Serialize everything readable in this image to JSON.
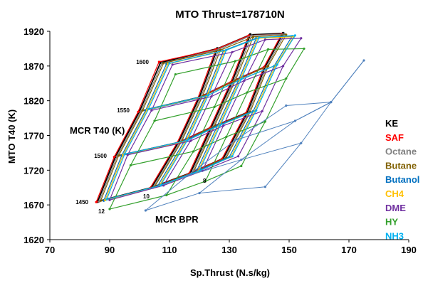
{
  "chart_data": {
    "type": "line",
    "title": "MTO Thrust=178710N",
    "xlabel": "Sp.Thrust (N.s/kg)",
    "ylabel": "MTO T40 (K)",
    "xlim": [
      70,
      190
    ],
    "ylim": [
      1620,
      1920
    ],
    "xticks": [
      70,
      90,
      110,
      130,
      150,
      170,
      190
    ],
    "yticks": [
      1620,
      1670,
      1720,
      1770,
      1820,
      1870,
      1920
    ],
    "grid": false,
    "legend_position": "right",
    "annotations": {
      "mcr_t40_label": "MCR T40 (K)",
      "mcr_bpr_label": "MCR BPR",
      "t40_levels": [
        "1600",
        "1550",
        "1500",
        "1450"
      ],
      "bpr_levels": [
        "12",
        "10",
        "8"
      ]
    },
    "series": [
      {
        "name": "KE",
        "color": "#000000",
        "x": [
          [
            86,
            92,
            100,
            107
          ],
          [
            104,
            113,
            120,
            126
          ],
          [
            117,
            124,
            131,
            137
          ],
          [
            128,
            136,
            142,
            148
          ]
        ],
        "y": [
          [
            1675,
            1740,
            1805,
            1875
          ],
          [
            1695,
            1760,
            1825,
            1895
          ],
          [
            1716,
            1782,
            1848,
            1915
          ],
          [
            1737,
            1803,
            1869,
            1917
          ]
        ]
      },
      {
        "name": "SAF",
        "color": "#ff0000",
        "x": [
          [
            85.5,
            91.5,
            99.5,
            106.5
          ],
          [
            103.5,
            112.5,
            119.5,
            125.5
          ],
          [
            116.5,
            123.5,
            130.5,
            136.5
          ],
          [
            127.5,
            135.5,
            141.5,
            147.5
          ]
        ],
        "y": [
          [
            1674,
            1739,
            1804,
            1876
          ],
          [
            1694,
            1759,
            1824,
            1894
          ],
          [
            1715,
            1781,
            1847,
            1914
          ],
          [
            1736,
            1802,
            1868,
            1916
          ]
        ]
      },
      {
        "name": "Octane",
        "color": "#7f7f7f",
        "x": [
          [
            86.5,
            92.5,
            100.5,
            107.5
          ],
          [
            104.5,
            113.5,
            120.5,
            126.5
          ],
          [
            117.5,
            124.5,
            131.5,
            137.5
          ],
          [
            128.5,
            136.5,
            142.5,
            148.5
          ]
        ],
        "y": [
          [
            1675,
            1740,
            1805,
            1874
          ],
          [
            1695,
            1760,
            1825,
            1894
          ],
          [
            1716,
            1782,
            1848,
            1914
          ],
          [
            1737,
            1803,
            1869,
            1916
          ]
        ]
      },
      {
        "name": "Butane",
        "color": "#806000",
        "x": [
          [
            87,
            93,
            101,
            108
          ],
          [
            105,
            114,
            121,
            127
          ],
          [
            118,
            125,
            132,
            138
          ],
          [
            129,
            137,
            143,
            149
          ]
        ],
        "y": [
          [
            1676,
            1741,
            1806,
            1874
          ],
          [
            1696,
            1761,
            1826,
            1893
          ],
          [
            1717,
            1783,
            1849,
            1912
          ],
          [
            1738,
            1804,
            1870,
            1915
          ]
        ]
      },
      {
        "name": "Butanol",
        "color": "#0070c0",
        "x": [
          [
            88,
            94,
            102,
            109
          ],
          [
            106,
            115,
            122,
            128
          ],
          [
            119,
            126,
            133,
            139
          ],
          [
            130,
            138,
            145,
            151
          ]
        ],
        "y": [
          [
            1676,
            1741,
            1806,
            1873
          ],
          [
            1697,
            1762,
            1826,
            1892
          ],
          [
            1718,
            1784,
            1849,
            1910
          ],
          [
            1739,
            1805,
            1870,
            1913
          ]
        ]
      },
      {
        "name": "CH4",
        "color": "#ffc000",
        "x": [
          [
            88.5,
            94.5,
            102.5,
            109.5
          ],
          [
            106.5,
            115.5,
            122.5,
            128.5
          ],
          [
            119.5,
            126.5,
            133.5,
            139.5
          ],
          [
            130.5,
            138.5,
            145.5,
            151.5
          ]
        ],
        "y": [
          [
            1677,
            1742,
            1807,
            1873
          ],
          [
            1697,
            1762,
            1827,
            1892
          ],
          [
            1718,
            1784,
            1850,
            1910
          ],
          [
            1739,
            1805,
            1871,
            1912
          ]
        ]
      },
      {
        "name": "DME",
        "color": "#7030a0",
        "x": [
          [
            90,
            96,
            104,
            111
          ],
          [
            108,
            117,
            124,
            131
          ],
          [
            121,
            128,
            135,
            142
          ],
          [
            133,
            141,
            148,
            154
          ]
        ],
        "y": [
          [
            1677,
            1742,
            1806,
            1872
          ],
          [
            1698,
            1762,
            1826,
            1890
          ],
          [
            1719,
            1784,
            1849,
            1908
          ],
          [
            1740,
            1805,
            1870,
            1910
          ]
        ]
      },
      {
        "name": "HY",
        "color": "#33a02c",
        "x": [
          [
            90,
            97,
            105,
            112
          ],
          [
            109,
            118,
            125,
            132
          ],
          [
            122,
            129,
            136,
            143
          ],
          [
            134,
            142,
            149,
            155
          ]
        ],
        "y": [
          [
            1664,
            1727,
            1791,
            1858
          ],
          [
            1684,
            1747,
            1811,
            1877
          ],
          [
            1704,
            1768,
            1832,
            1894
          ],
          [
            1726,
            1790,
            1852,
            1895
          ]
        ]
      },
      {
        "name": "NH3",
        "color": "#00b0f0",
        "x": [
          [
            89,
            95,
            103,
            110
          ],
          [
            107,
            116,
            123,
            129
          ],
          [
            120,
            127,
            134,
            140
          ],
          [
            131,
            139,
            146,
            152
          ]
        ],
        "y": [
          [
            1678,
            1743,
            1808,
            1874
          ],
          [
            1698,
            1763,
            1828,
            1893
          ],
          [
            1719,
            1785,
            1851,
            1911
          ],
          [
            1740,
            1806,
            1872,
            1914
          ]
        ]
      },
      {
        "name": "",
        "color": "#4f81bd",
        "x": [
          [
            102,
            116,
            132,
            149
          ],
          [
            120,
            134,
            152,
            164
          ],
          [
            142,
            154,
            164,
            175
          ]
        ],
        "y": [
          [
            1662,
            1712,
            1763,
            1813
          ],
          [
            1687,
            1735,
            1791,
            1818
          ],
          [
            1696,
            1759,
            1818,
            1878
          ]
        ]
      }
    ]
  }
}
